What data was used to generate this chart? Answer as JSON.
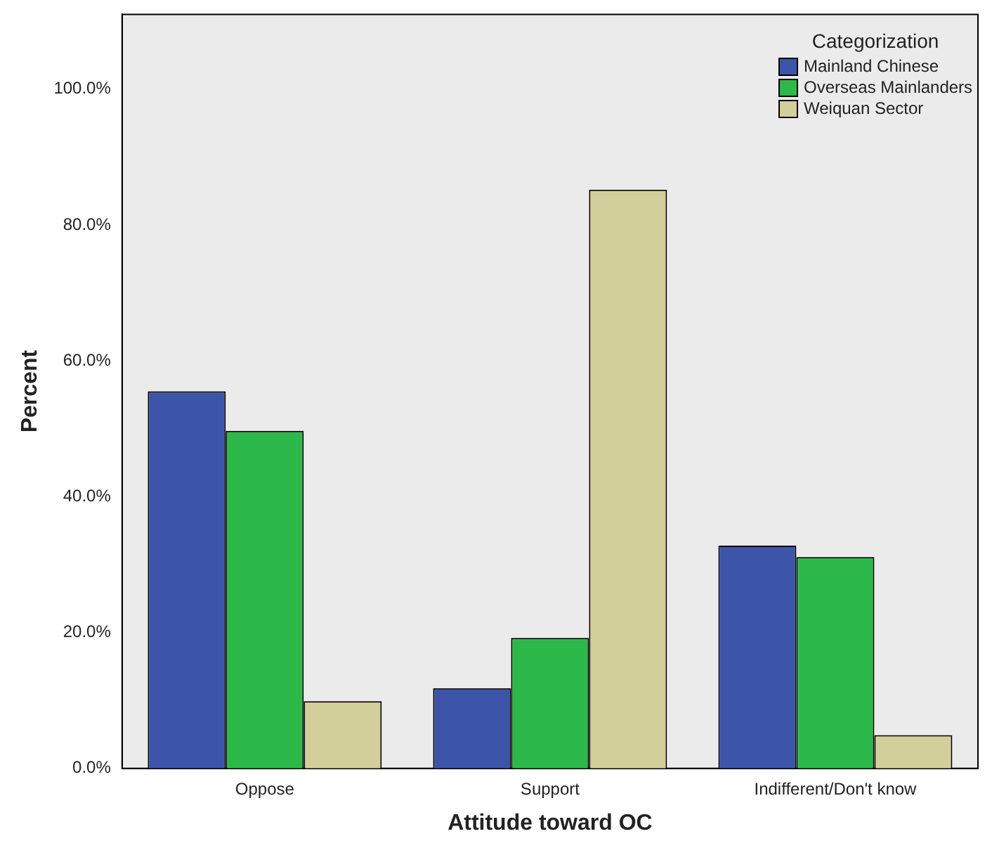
{
  "chart_data": {
    "type": "bar",
    "xlabel": "Attitude toward OC",
    "ylabel": "Percent",
    "legend_title": "Categorization",
    "categories": [
      "Oppose",
      "Support",
      "Indifferent/Don't know"
    ],
    "series": [
      {
        "name": "Mainland Chinese",
        "color": "#3d55a8",
        "values": [
          55.5,
          11.8,
          32.8
        ]
      },
      {
        "name": "Overseas Mainlanders",
        "color": "#2db84a",
        "values": [
          49.7,
          19.2,
          31.1
        ]
      },
      {
        "name": "Weiquan Sector",
        "color": "#d3cf9a",
        "values": [
          9.9,
          85.2,
          4.9
        ]
      }
    ],
    "ylim": [
      0,
      111
    ],
    "yticks": [
      {
        "value": 0,
        "label": "0.0%"
      },
      {
        "value": 20,
        "label": "20.0%"
      },
      {
        "value": 40,
        "label": "40.0%"
      },
      {
        "value": 60,
        "label": "60.0%"
      },
      {
        "value": 80,
        "label": "80.0%"
      },
      {
        "value": 100,
        "label": "100.0%"
      }
    ],
    "grid": false,
    "legend": "top right"
  }
}
